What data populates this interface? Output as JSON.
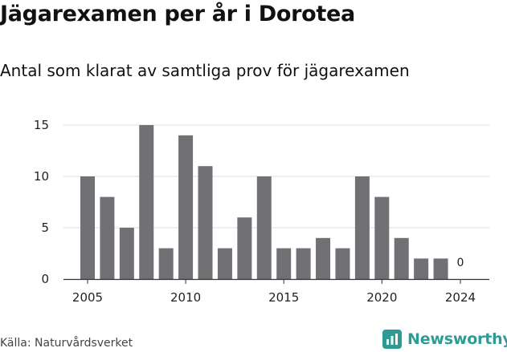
{
  "title": "Jägarexamen per år i Dorotea",
  "subtitle": "Antal som klarat av samtliga prov för jägarexamen",
  "source": "Källa: Naturvårdsverket",
  "brand": {
    "name": "Newsworthy",
    "icon": "newsworthy-logo-icon",
    "color": "#2e9c94"
  },
  "colors": {
    "bar": "#717074",
    "grid": "#dddddd",
    "axis": "#333333"
  },
  "chart_data": {
    "type": "bar",
    "x": [
      2005,
      2006,
      2007,
      2008,
      2009,
      2010,
      2011,
      2012,
      2013,
      2014,
      2015,
      2016,
      2017,
      2018,
      2019,
      2020,
      2021,
      2022,
      2023,
      2024
    ],
    "values": [
      10,
      8,
      5,
      15,
      3,
      14,
      11,
      3,
      6,
      10,
      3,
      3,
      4,
      3,
      10,
      8,
      4,
      2,
      2,
      0
    ],
    "x_ticks": [
      2005,
      2010,
      2015,
      2020,
      2024
    ],
    "y_ticks": [
      0,
      5,
      10,
      15
    ],
    "ylim": [
      0,
      15
    ],
    "grid": true,
    "annotations": [
      {
        "x": 2024,
        "text": "0"
      }
    ],
    "title": "Jägarexamen per år i Dorotea",
    "subtitle": "Antal som klarat av samtliga prov för jägarexamen",
    "xlabel": "",
    "ylabel": ""
  }
}
